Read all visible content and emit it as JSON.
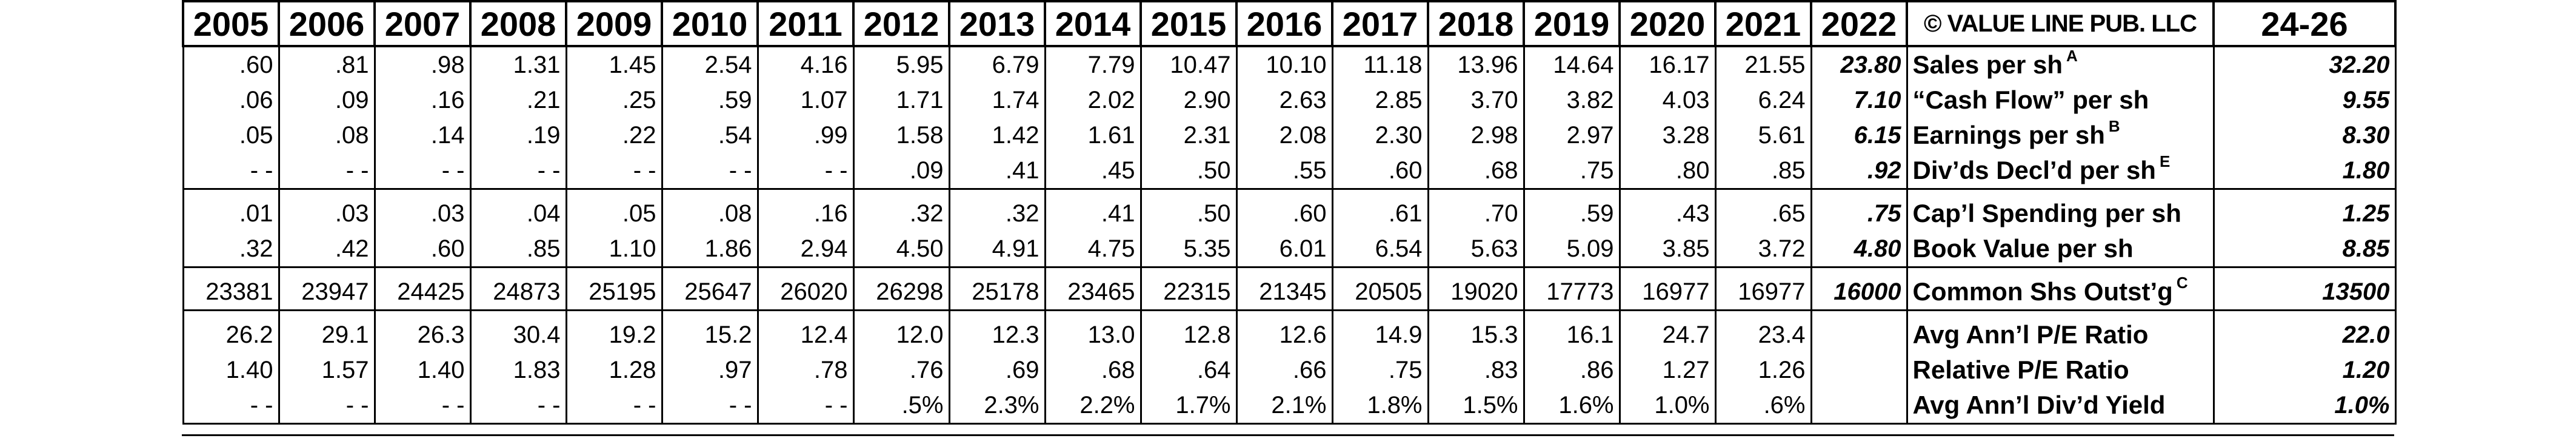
{
  "years": [
    "2005",
    "2006",
    "2007",
    "2008",
    "2009",
    "2010",
    "2011",
    "2012",
    "2013",
    "2014",
    "2015",
    "2016",
    "2017",
    "2018",
    "2019",
    "2020",
    "2021",
    "2022"
  ],
  "publisher": "© VALUE LINE PUB. LLC",
  "future_period": "24-26",
  "rows": [
    {
      "label": "Sales per sh",
      "note": "A",
      "values": [
        ".60",
        ".81",
        ".98",
        "1.31",
        "1.45",
        "2.54",
        "4.16",
        "5.95",
        "6.79",
        "7.79",
        "10.47",
        "10.10",
        "11.18",
        "13.96",
        "14.64",
        "16.17",
        "21.55",
        "23.80"
      ],
      "future": "32.20"
    },
    {
      "label": "“Cash Flow” per sh",
      "note": "",
      "values": [
        ".06",
        ".09",
        ".16",
        ".21",
        ".25",
        ".59",
        "1.07",
        "1.71",
        "1.74",
        "2.02",
        "2.90",
        "2.63",
        "2.85",
        "3.70",
        "3.82",
        "4.03",
        "6.24",
        "7.10"
      ],
      "future": "9.55"
    },
    {
      "label": "Earnings per sh",
      "note": "B",
      "values": [
        ".05",
        ".08",
        ".14",
        ".19",
        ".22",
        ".54",
        ".99",
        "1.58",
        "1.42",
        "1.61",
        "2.31",
        "2.08",
        "2.30",
        "2.98",
        "2.97",
        "3.28",
        "5.61",
        "6.15"
      ],
      "future": "8.30"
    },
    {
      "label": "Div’ds Decl’d per sh",
      "note": "E",
      "values": [
        "- -",
        "- -",
        "- -",
        "- -",
        "- -",
        "- -",
        "- -",
        ".09",
        ".41",
        ".45",
        ".50",
        ".55",
        ".60",
        ".68",
        ".75",
        ".80",
        ".85",
        ".92"
      ],
      "future": "1.80"
    },
    {
      "label": "Cap’l Spending per sh",
      "note": "",
      "values": [
        ".01",
        ".03",
        ".03",
        ".04",
        ".05",
        ".08",
        ".16",
        ".32",
        ".32",
        ".41",
        ".50",
        ".60",
        ".61",
        ".70",
        ".59",
        ".43",
        ".65",
        ".75"
      ],
      "future": "1.25"
    },
    {
      "label": "Book Value per sh",
      "note": "",
      "values": [
        ".32",
        ".42",
        ".60",
        ".85",
        "1.10",
        "1.86",
        "2.94",
        "4.50",
        "4.91",
        "4.75",
        "5.35",
        "6.01",
        "6.54",
        "5.63",
        "5.09",
        "3.85",
        "3.72",
        "4.80"
      ],
      "future": "8.85"
    },
    {
      "label": "Common Shs Outst’g",
      "note": "C",
      "values": [
        "23381",
        "23947",
        "24425",
        "24873",
        "25195",
        "25647",
        "26020",
        "26298",
        "25178",
        "23465",
        "22315",
        "21345",
        "20505",
        "19020",
        "17773",
        "16977",
        "16977",
        "16000"
      ],
      "future": "13500"
    },
    {
      "label": "Avg Ann’l P/E Ratio",
      "note": "",
      "values": [
        "26.2",
        "29.1",
        "26.3",
        "30.4",
        "19.2",
        "15.2",
        "12.4",
        "12.0",
        "12.3",
        "13.0",
        "12.8",
        "12.6",
        "14.9",
        "15.3",
        "16.1",
        "24.7",
        "23.4",
        ""
      ],
      "future": "22.0"
    },
    {
      "label": "Relative P/E Ratio",
      "note": "",
      "values": [
        "1.40",
        "1.57",
        "1.40",
        "1.83",
        "1.28",
        ".97",
        ".78",
        ".76",
        ".69",
        ".68",
        ".64",
        ".66",
        ".75",
        ".83",
        ".86",
        "1.27",
        "1.26",
        ""
      ],
      "future": "1.20"
    },
    {
      "label": "Avg Ann’l Div’d Yield",
      "note": "",
      "values": [
        "- -",
        "- -",
        "- -",
        "- -",
        "- -",
        "- -",
        "- -",
        ".5%",
        "2.3%",
        "2.2%",
        "1.7%",
        "2.1%",
        "1.8%",
        "1.5%",
        "1.6%",
        "1.0%",
        ".6%",
        ""
      ],
      "future": "1.0%"
    }
  ]
}
